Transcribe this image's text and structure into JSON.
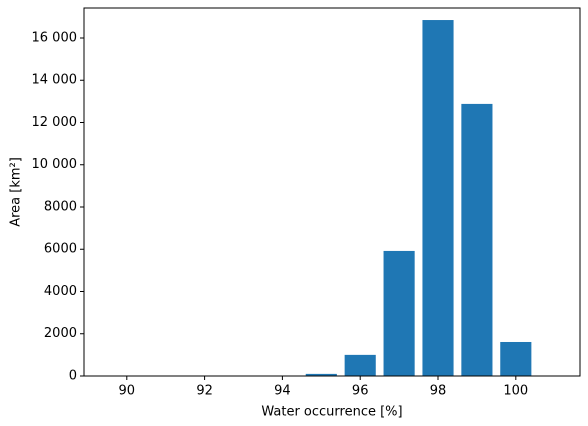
{
  "chart_data": {
    "type": "bar",
    "x": [
      95,
      96,
      97,
      98,
      99,
      100
    ],
    "values": [
      100,
      1000,
      5920,
      16850,
      12880,
      1610
    ],
    "color": "#1f77b4",
    "xlabel": "Water occurrence [%]",
    "ylabel": "Area [km²]",
    "xlim": [
      88.9,
      101.65
    ],
    "xticks": [
      90,
      92,
      94,
      96,
      98,
      100
    ],
    "ylim": [
      0,
      17420
    ],
    "yticks": [
      0,
      2000,
      4000,
      6000,
      8000,
      {
        "value": 10000,
        "label": "10 000"
      },
      {
        "value": 12000,
        "label": "12 000"
      },
      {
        "value": 14000,
        "label": "14 000"
      },
      {
        "value": 16000,
        "label": "16 000"
      }
    ]
  }
}
